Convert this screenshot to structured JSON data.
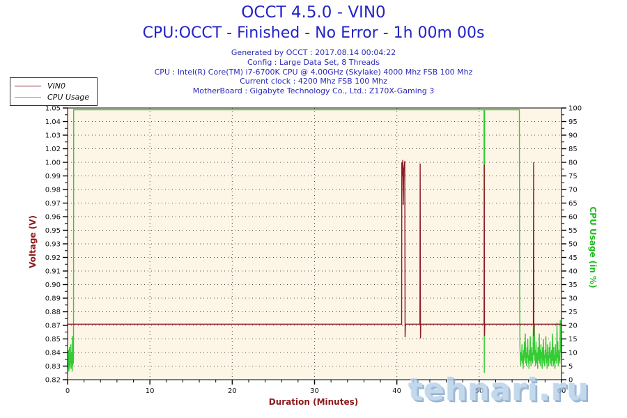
{
  "header": {
    "title_line1": "OCCT 4.5.0 - VIN0",
    "title_line2": "CPU:OCCT - Finished - No Error - 1h 00m 00s",
    "title_color": "#2323c8",
    "info_color": "#2a2ab8",
    "info_lines": [
      "Generated by OCCT : 2017.08.14 00:04:22",
      "Config : Large Data Set, 8 Threads",
      "CPU : Intel(R) Core(TM) i7-6700K CPU @ 4.00GHz (Skylake) 4000 Mhz FSB 100 Mhz",
      "Current clock : 4200 Mhz FSB 100 Mhz",
      "MotherBoard : Gigabyte Technology Co., Ltd.: Z170X-Gaming 3"
    ]
  },
  "legend": {
    "items": [
      {
        "label": "VIN0",
        "color": "#8c1c28"
      },
      {
        "label": "CPU Usage",
        "color": "#33cc33"
      }
    ]
  },
  "watermark": {
    "text": "tehnari.ru",
    "color": "#b8d0e8"
  },
  "chart_data": {
    "type": "line",
    "xlabel": "Duration (Minutes)",
    "ylabel_left": "Voltage (V)",
    "ylabel_right": "CPU Usage (in %)",
    "x_range": [
      0,
      60
    ],
    "x_tick_labels": [
      "0",
      "10",
      "20",
      "30",
      "40",
      "50",
      "60"
    ],
    "x_major_step_minutes": 10,
    "x_minor_step_minutes": 2,
    "grid_vertical_every_minutes": 10,
    "left_axis": {
      "min": 0.82,
      "max": 1.05,
      "tick_labels": [
        "1.05",
        "1.04",
        "1.03",
        "1.02",
        "1.00",
        "0.99",
        "0.98",
        "0.97",
        "0.96",
        "0.95",
        "0.93",
        "0.92",
        "0.91",
        "0.90",
        "0.89",
        "0.88",
        "0.87",
        "0.85",
        "0.84",
        "0.83",
        "0.82"
      ],
      "title_color": "#8b1a1a",
      "tick_label_color": "#111111"
    },
    "right_axis": {
      "min": 0,
      "max": 100,
      "tick_labels": [
        "100",
        "95",
        "90",
        "85",
        "80",
        "75",
        "70",
        "65",
        "60",
        "55",
        "50",
        "45",
        "40",
        "35",
        "30",
        "25",
        "20",
        "15",
        "10",
        "5",
        "0"
      ],
      "title_color": "#22bb22",
      "tick_label_color": "#111111"
    },
    "plot_bg": "#fdf5e6",
    "grid_color": "#4a4a4a",
    "frame_color": "#000000",
    "series": [
      {
        "name": "CPU Usage",
        "axis": "right",
        "color": "#33cc33",
        "points": [
          [
            0,
            5
          ],
          [
            0.03,
            9
          ],
          [
            0.06,
            4
          ],
          [
            0.1,
            11
          ],
          [
            0.13,
            6
          ],
          [
            0.16,
            3
          ],
          [
            0.2,
            8
          ],
          [
            0.23,
            12
          ],
          [
            0.26,
            5
          ],
          [
            0.3,
            9
          ],
          [
            0.33,
            4
          ],
          [
            0.36,
            7
          ],
          [
            0.4,
            13
          ],
          [
            0.43,
            6
          ],
          [
            0.46,
            10
          ],
          [
            0.5,
            4
          ],
          [
            0.53,
            8
          ],
          [
            0.56,
            3
          ],
          [
            0.6,
            16
          ],
          [
            0.63,
            5
          ],
          [
            0.66,
            9
          ],
          [
            0.7,
            6
          ],
          [
            0.72,
            8
          ],
          [
            0.74,
            100
          ],
          [
            50.58,
            100
          ],
          [
            50.62,
            2.5
          ],
          [
            50.66,
            100
          ],
          [
            54.88,
            100
          ],
          [
            54.92,
            27
          ],
          [
            54.95,
            12
          ],
          [
            55.0,
            8
          ],
          [
            55.05,
            5
          ],
          [
            55.1,
            10
          ],
          [
            55.15,
            7
          ],
          [
            55.2,
            13
          ],
          [
            55.25,
            6
          ],
          [
            55.3,
            9
          ],
          [
            55.35,
            4
          ],
          [
            55.4,
            11
          ],
          [
            55.45,
            7
          ],
          [
            55.5,
            14
          ],
          [
            55.55,
            8
          ],
          [
            55.6,
            17
          ],
          [
            55.65,
            6
          ],
          [
            55.7,
            10
          ],
          [
            55.75,
            5
          ],
          [
            55.8,
            12
          ],
          [
            55.85,
            8
          ],
          [
            55.9,
            15
          ],
          [
            55.95,
            6
          ],
          [
            56.0,
            9
          ],
          [
            56.05,
            4
          ],
          [
            56.1,
            11
          ],
          [
            56.15,
            7
          ],
          [
            56.2,
            16
          ],
          [
            56.25,
            8
          ],
          [
            56.3,
            5
          ],
          [
            56.35,
            12
          ],
          [
            56.4,
            7
          ],
          [
            56.45,
            10
          ],
          [
            56.5,
            6
          ],
          [
            56.55,
            13
          ],
          [
            56.6,
            23
          ],
          [
            56.65,
            9
          ],
          [
            56.7,
            20
          ],
          [
            56.75,
            7
          ],
          [
            56.8,
            11
          ],
          [
            56.85,
            5
          ],
          [
            56.9,
            14
          ],
          [
            56.95,
            8
          ],
          [
            57.0,
            6
          ],
          [
            57.05,
            10
          ],
          [
            57.1,
            4
          ],
          [
            57.15,
            12
          ],
          [
            57.2,
            7
          ],
          [
            57.25,
            9
          ],
          [
            57.3,
            17
          ],
          [
            57.35,
            6
          ],
          [
            57.4,
            11
          ],
          [
            57.45,
            5
          ],
          [
            57.5,
            13
          ],
          [
            57.55,
            8
          ],
          [
            57.6,
            10
          ],
          [
            57.65,
            4
          ],
          [
            57.7,
            12
          ],
          [
            57.75,
            7
          ],
          [
            57.8,
            15
          ],
          [
            57.85,
            6
          ],
          [
            57.9,
            9
          ],
          [
            57.95,
            5
          ],
          [
            58.0,
            11
          ],
          [
            58.05,
            8
          ],
          [
            58.1,
            16
          ],
          [
            58.15,
            6
          ],
          [
            58.2,
            10
          ],
          [
            58.25,
            4
          ],
          [
            58.3,
            13
          ],
          [
            58.35,
            7
          ],
          [
            58.4,
            9
          ],
          [
            58.45,
            5
          ],
          [
            58.5,
            12
          ],
          [
            58.55,
            8
          ],
          [
            58.6,
            14
          ],
          [
            58.65,
            6
          ],
          [
            58.7,
            10
          ],
          [
            58.75,
            5
          ],
          [
            58.8,
            11
          ],
          [
            58.85,
            7
          ],
          [
            58.9,
            17
          ],
          [
            58.95,
            8
          ],
          [
            59.0,
            5
          ],
          [
            59.05,
            12
          ],
          [
            59.1,
            6
          ],
          [
            59.15,
            9
          ],
          [
            59.2,
            4
          ],
          [
            59.25,
            13
          ],
          [
            59.3,
            7
          ],
          [
            59.35,
            10
          ],
          [
            59.4,
            6
          ],
          [
            59.45,
            21
          ],
          [
            59.5,
            8
          ],
          [
            59.55,
            14
          ],
          [
            59.6,
            5
          ],
          [
            59.65,
            11
          ],
          [
            59.7,
            7
          ],
          [
            59.75,
            9
          ],
          [
            59.8,
            6
          ],
          [
            59.85,
            22
          ],
          [
            59.9,
            10
          ],
          [
            59.95,
            15
          ],
          [
            60.0,
            8
          ]
        ]
      },
      {
        "name": "VIN0",
        "axis": "left",
        "color": "#8c1c28",
        "points": [
          [
            0,
            0.867
          ],
          [
            40.58,
            0.867
          ],
          [
            40.6,
            1.004
          ],
          [
            40.66,
            0.992
          ],
          [
            40.72,
            1.006
          ],
          [
            40.78,
            0.968
          ],
          [
            40.84,
            0.998
          ],
          [
            40.96,
            1.005
          ],
          [
            41.0,
            0.856
          ],
          [
            41.04,
            0.867
          ],
          [
            42.8,
            0.867
          ],
          [
            42.83,
            1.003
          ],
          [
            42.87,
            0.855
          ],
          [
            42.91,
            0.867
          ],
          [
            50.59,
            0.867
          ],
          [
            50.62,
            1.002
          ],
          [
            50.65,
            0.857
          ],
          [
            50.68,
            0.867
          ],
          [
            56.58,
            0.867
          ],
          [
            56.61,
            1.004
          ],
          [
            56.64,
            0.857
          ],
          [
            56.67,
            0.867
          ],
          [
            60,
            0.867
          ]
        ]
      }
    ]
  }
}
